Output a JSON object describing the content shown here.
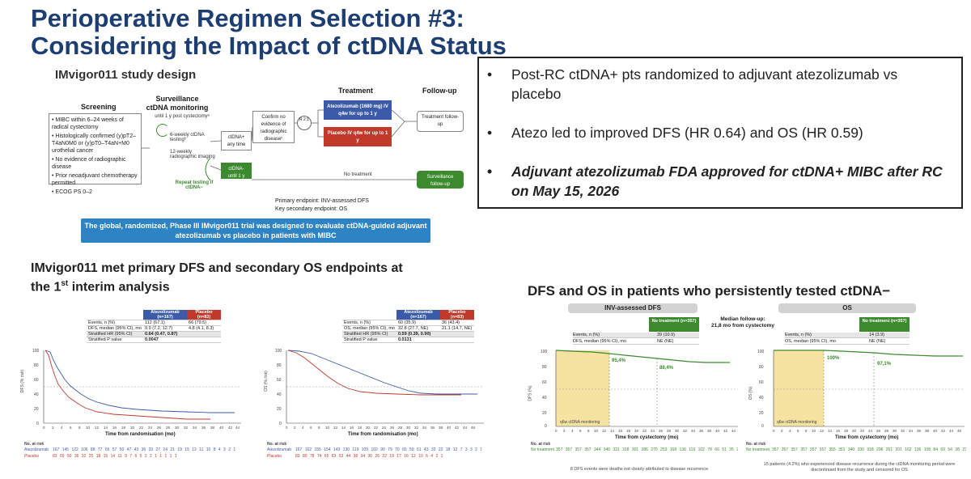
{
  "title": {
    "line1": "Perioperative Regimen Selection #3:",
    "line2": "Considering the Impact of ctDNA Status"
  },
  "study": {
    "heading": "IMvigor011 study design",
    "screening": {
      "label": "Screening",
      "items": [
        "MIBC within 6–24 weeks of radical cystectomy",
        "Histologically confirmed (y)pT2–T4aN0M0 or (y)pT0–T4aN+M0 urothelial cancer",
        "No evidence of radiographic disease",
        "Prior neoadjuvant chemotherapy permitted",
        "ECOG PS 0–2"
      ]
    },
    "surveillance": {
      "label": "Surveillance ctDNA monitoring",
      "sub": "until 1 y post cystectomyᵃ",
      "item1": "6-weekly ctDNA testingᵇ",
      "item2": "12-weekly radiographic imaging",
      "repeat": "Repeat testing if ctDNA−"
    },
    "pos_box": "ctDNA+ any time",
    "neg_box": "ctDNA- until 1 y",
    "confirm_box": "Confirm no evidence of radiographic diseaseᶜ",
    "rand": "R 2:1",
    "treatment_label": "Treatment",
    "followup_label": "Follow-up",
    "atezo_box": "Atezolizumab (1680 mg) IV q4w for up to 1 y",
    "placebo_box": "Placebo IV q4w for up to 1 y",
    "tx_followup": "Treatment follow-up",
    "no_treatment": "No treatment",
    "surv_followup": "Surveillance follow-up",
    "primary": "Primary endpoint: INV-assessed DFS",
    "secondary": "Key secondary endpoint: OS",
    "banner": "The global, randomized, Phase III IMvigor011 trial was designed to evaluate ctDNA-guided adjuvant atezolizumab vs placebo in patients with MIBC"
  },
  "bullets": [
    {
      "text": "Post-RC ctDNA+ pts randomized to adjuvant atezolizumab vs placebo",
      "bold": false
    },
    {
      "text": "Atezo led to improved DFS (HR 0.64) and OS (HR 0.59)",
      "bold": false
    },
    {
      "text": "Adjuvant atezolizumab FDA approved for ctDNA+ MIBC after RC on May 15, 2026",
      "bold": true
    }
  ],
  "endpoints_heading": {
    "line1": "IMvigor011 met primary DFS and secondary OS endpoints at",
    "line2a": "the 1",
    "line2sup": "st",
    "line2b": " interim analysis"
  },
  "persist_heading": "DFS and OS in patients who persistently tested ctDNA−",
  "km_dfs": {
    "ylabel": "DFS (% risk)",
    "xlabel": "Time from randomisation (mo)",
    "col_atezo": "Atezolizumab (n=167)",
    "col_placebo": "Placebo (n=83)",
    "rows": [
      [
        "Events, n (%)",
        "112 (67.1)",
        "66 (79.5)"
      ],
      [
        "DFS, median (95% CI), mo",
        "9.9 (7.2, 12.7)",
        "4.8 (4.1, 8.3)"
      ],
      [
        "Stratified HR (95% CI)",
        "0.64 (0.47, 0.87)",
        ""
      ],
      [
        "Stratified P value",
        "0.0047",
        ""
      ]
    ],
    "at_risk_label": "No. at risk",
    "risk_atezo_label": "Atezolizumab",
    "risk_placebo_label": "Placebo",
    "risk_atezo": "167 145 122 106 88 77 65 57 50 47 43 36 33 27 24 21 19 15 12 11 10 8 4 3 2 1",
    "risk_placebo": "83 69 50 36 32 25 18 15 14 11 9 7 6 5 2 2 1 1 1 1 1"
  },
  "km_os": {
    "ylabel": "OS (% risk)",
    "xlabel": "Time from randomisation (mo)",
    "col_atezo": "Atezolizumab (n=167)",
    "col_placebo": "Placebo (n=83)",
    "rows": [
      [
        "Events, n (%)",
        "60 (35.9)",
        "36 (43.4)"
      ],
      [
        "OS, median (95% CI), mo",
        "32.8 (27.7, NE)",
        "21.1 (14.7, NE)"
      ],
      [
        "Stratified HR (95% CI)",
        "0.59 (0.39, 0.90)",
        ""
      ],
      [
        "Stratified P value",
        "0.0131",
        ""
      ]
    ],
    "at_risk_label": "No. at risk",
    "risk_atezo_label": "Atezolizumab",
    "risk_placebo_label": "Placebo",
    "risk_atezo": "167 162 155 154 143 130 119 109 102 90 79 70 65 59 51 43 33 22 18 12 7 3 3 2 1",
    "risk_placebo": "83 80 78 74 65 63 53 44 38 34 30 26 22 19 17 16 12 10 5 4 2 1"
  },
  "persist_dfs": {
    "pill": "INV-assessed DFS",
    "col": "No treatment (n=357)",
    "rows": [
      [
        "Events, n (%)",
        "39 (10.9)"
      ],
      [
        "DFS, median (95% CI), mo",
        "NE (NE)"
      ]
    ],
    "ylabel": "DFS (%)",
    "xlabel": "Time from cystectomy (mo)",
    "lab1": "95,4%",
    "lab2": "88,4%",
    "monitor": "q6w ctDNA monitoring",
    "at_risk_label": "No. at risk",
    "risk_label": "No treatment",
    "risk": "357 357 357 357 344 340 331 318 301 286 270 253 168 136 119 102 78 66 51 35 21 11 3",
    "footnote": "8 DFS events were deaths not clearly attributed to disease recurrence"
  },
  "median_fu": {
    "line1": "Median follow-up:",
    "line2": "21,8 mo from cystectomy"
  },
  "persist_os": {
    "pill": "OS",
    "col": "No treatment (n=357)",
    "rows": [
      [
        "Events, n (%)",
        "14 (3.9)"
      ],
      [
        "OS, median (95% CI), mo",
        "NE (NE)"
      ]
    ],
    "ylabel": "OS (%)",
    "xlabel": "Time from cystectomy (mo)",
    "lab1": "100%",
    "lab2": "97,1%",
    "monitor": "q6w ctDNA monitoring",
    "at_risk_label": "No. at risk",
    "risk_label": "No treatment",
    "risk": "357 357 357 357 357 357 355 351 340 330 318 296 261 201 162 136 108 84 69 54 38 23 12 4",
    "footnote": "15 patients (4.2%) who experienced disease recurrence during the ctDNA monitoring period were discontinued from the study and censored for OS"
  },
  "colors": {
    "title": "#1d3e73",
    "atezo": "#3b5ba9",
    "placebo": "#c0392b",
    "green": "#3b8a2e",
    "banner": "#2e83c5",
    "yellow": "#f6e3a2"
  }
}
